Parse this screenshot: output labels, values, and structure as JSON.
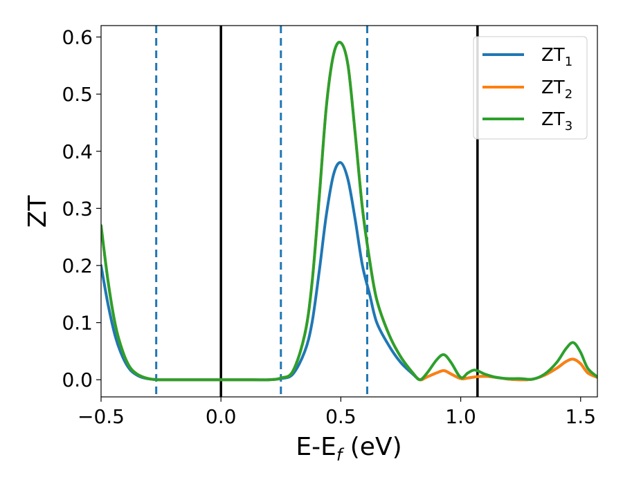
{
  "chart_data": {
    "type": "line",
    "xlabel": "E-E",
    "xlabel_sub": "f",
    "xlabel_unit": " (eV)",
    "ylabel": "ZT",
    "xlim": [
      -0.5,
      1.57
    ],
    "ylim": [
      -0.03,
      0.62
    ],
    "x_ticks": [
      -0.5,
      0.0,
      0.5,
      1.0,
      1.5
    ],
    "x_tick_labels": [
      "−0.5",
      "0.0",
      "0.5",
      "1.0",
      "1.5"
    ],
    "y_ticks": [
      0.0,
      0.1,
      0.2,
      0.3,
      0.4,
      0.5,
      0.6
    ],
    "y_tick_labels": [
      "0.0",
      "0.1",
      "0.2",
      "0.3",
      "0.4",
      "0.5",
      "0.6"
    ],
    "grid": false,
    "legend_position": "top-right",
    "vertical_lines": [
      {
        "x": -0.27,
        "style": "dashed",
        "color": "#1f77b4"
      },
      {
        "x": 0.0,
        "style": "solid",
        "color": "#000000"
      },
      {
        "x": 0.25,
        "style": "dashed",
        "color": "#1f77b4"
      },
      {
        "x": 0.61,
        "style": "dashed",
        "color": "#1f77b4"
      },
      {
        "x": 1.07,
        "style": "solid",
        "color": "#000000"
      }
    ],
    "series": [
      {
        "name": "ZT",
        "name_sub": "1",
        "color": "#1f77b4",
        "x": [
          -0.5,
          -0.47,
          -0.44,
          -0.41,
          -0.38,
          -0.35,
          -0.32,
          -0.29,
          -0.26,
          -0.2,
          -0.1,
          0.0,
          0.1,
          0.2,
          0.25,
          0.3,
          0.35,
          0.38,
          0.41,
          0.44,
          0.47,
          0.5,
          0.53,
          0.56,
          0.59,
          0.62,
          0.65,
          0.7,
          0.75,
          0.8,
          0.83,
          0.86,
          0.9,
          0.93,
          0.96,
          1.0,
          1.03,
          1.06,
          1.1,
          1.15,
          1.2,
          1.25,
          1.3,
          1.35,
          1.4,
          1.44,
          1.47,
          1.5,
          1.53,
          1.57
        ],
        "values": [
          0.2,
          0.13,
          0.075,
          0.04,
          0.018,
          0.008,
          0.003,
          0.001,
          0.0,
          0.0,
          0.0,
          0.0,
          0.0,
          0.0,
          0.002,
          0.01,
          0.05,
          0.1,
          0.19,
          0.29,
          0.36,
          0.38,
          0.35,
          0.28,
          0.2,
          0.15,
          0.1,
          0.06,
          0.03,
          0.01,
          0.0,
          0.005,
          0.012,
          0.016,
          0.01,
          0.002,
          0.003,
          0.005,
          0.006,
          0.004,
          0.001,
          0.0,
          0.001,
          0.008,
          0.02,
          0.032,
          0.036,
          0.028,
          0.012,
          0.004
        ]
      },
      {
        "name": "ZT",
        "name_sub": "2",
        "color": "#ff7f0e",
        "x": [
          -0.5,
          -0.47,
          -0.44,
          -0.41,
          -0.38,
          -0.35,
          -0.32,
          -0.29,
          -0.26,
          -0.2,
          -0.1,
          0.0,
          0.1,
          0.2,
          0.25,
          0.3,
          0.35,
          0.38,
          0.41,
          0.44,
          0.47,
          0.5,
          0.53,
          0.56,
          0.59,
          0.62,
          0.65,
          0.7,
          0.75,
          0.8,
          0.83,
          0.86,
          0.9,
          0.93,
          0.96,
          1.0,
          1.03,
          1.06,
          1.1,
          1.15,
          1.2,
          1.25,
          1.3,
          1.35,
          1.4,
          1.44,
          1.47,
          1.5,
          1.53,
          1.57
        ],
        "values": [
          0.27,
          0.17,
          0.095,
          0.05,
          0.022,
          0.01,
          0.004,
          0.001,
          0.0,
          0.0,
          0.0,
          0.0,
          0.0,
          0.0,
          0.003,
          0.015,
          0.08,
          0.17,
          0.32,
          0.48,
          0.57,
          0.59,
          0.55,
          0.43,
          0.3,
          0.21,
          0.14,
          0.08,
          0.04,
          0.012,
          0.0,
          0.005,
          0.012,
          0.016,
          0.01,
          0.002,
          0.003,
          0.005,
          0.006,
          0.004,
          0.001,
          0.0,
          0.001,
          0.008,
          0.02,
          0.032,
          0.036,
          0.028,
          0.012,
          0.004
        ]
      },
      {
        "name": "ZT",
        "name_sub": "3",
        "color": "#2ca02c",
        "x": [
          -0.5,
          -0.47,
          -0.44,
          -0.41,
          -0.38,
          -0.35,
          -0.32,
          -0.29,
          -0.26,
          -0.2,
          -0.1,
          0.0,
          0.1,
          0.2,
          0.25,
          0.3,
          0.35,
          0.38,
          0.41,
          0.44,
          0.47,
          0.5,
          0.53,
          0.56,
          0.59,
          0.62,
          0.65,
          0.7,
          0.75,
          0.8,
          0.83,
          0.86,
          0.9,
          0.93,
          0.96,
          1.0,
          1.03,
          1.06,
          1.1,
          1.15,
          1.2,
          1.25,
          1.3,
          1.35,
          1.4,
          1.44,
          1.47,
          1.5,
          1.53,
          1.57
        ],
        "values": [
          0.27,
          0.17,
          0.095,
          0.05,
          0.022,
          0.01,
          0.004,
          0.001,
          0.0,
          0.0,
          0.0,
          0.0,
          0.0,
          0.0,
          0.003,
          0.015,
          0.08,
          0.17,
          0.32,
          0.48,
          0.57,
          0.59,
          0.55,
          0.43,
          0.3,
          0.21,
          0.14,
          0.08,
          0.04,
          0.012,
          0.0,
          0.012,
          0.035,
          0.044,
          0.03,
          0.004,
          0.012,
          0.017,
          0.01,
          0.004,
          0.002,
          0.002,
          0.001,
          0.01,
          0.03,
          0.055,
          0.065,
          0.048,
          0.02,
          0.005
        ]
      }
    ]
  }
}
